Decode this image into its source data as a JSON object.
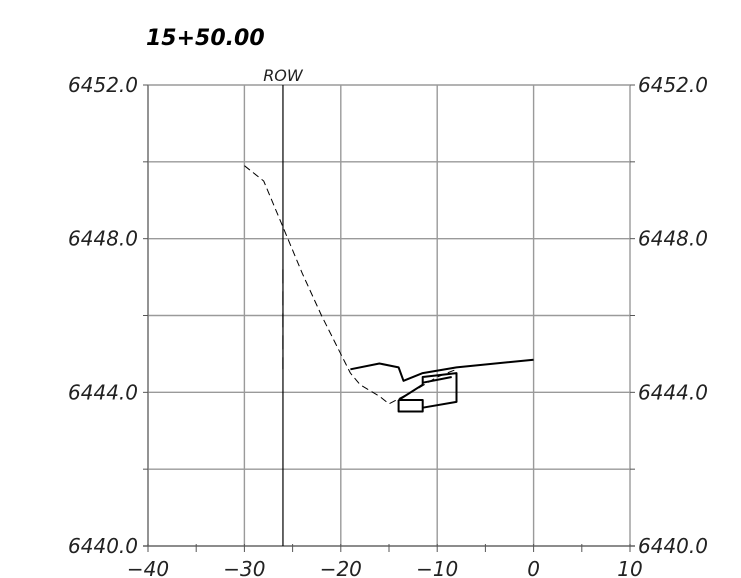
{
  "chart_data": {
    "type": "line",
    "title": "15+50.00",
    "x_ticks": [
      -40,
      -30,
      -20,
      -10,
      0,
      10
    ],
    "x_tick_labels": [
      "−40",
      "−30",
      "−20",
      "−10",
      "0",
      "10"
    ],
    "y_ticks_left": [
      "6452.0",
      "6448.0",
      "6444.0",
      "6440.0"
    ],
    "y_ticks_right": [
      "6452.0",
      "6448.0",
      "6444.0",
      "6440.0"
    ],
    "y_tick_values": [
      6452,
      6448,
      6444,
      6440
    ],
    "xlim": [
      -40,
      10
    ],
    "ylim": [
      6440,
      6452
    ],
    "grid": true,
    "annotations": [
      {
        "text": "ROW",
        "x": -26
      }
    ],
    "series": [
      {
        "style": "dashed",
        "points": [
          [
            -30,
            6449.9
          ],
          [
            -28,
            6449.5
          ],
          [
            -26,
            6448.3
          ],
          [
            -24,
            6447.1
          ],
          [
            -22,
            6446.0
          ],
          [
            -19,
            6444.5
          ],
          [
            -18,
            6444.2
          ],
          [
            -16,
            6443.9
          ],
          [
            -15,
            6443.7
          ],
          [
            -13.5,
            6443.9
          ],
          [
            -12,
            6444.1
          ],
          [
            -10,
            6444.4
          ],
          [
            -8,
            6444.6
          ]
        ]
      },
      {
        "style": "solid",
        "points": [
          [
            -19,
            6444.6
          ],
          [
            -16,
            6444.75
          ],
          [
            -14,
            6444.65
          ],
          [
            -13.5,
            6444.3
          ],
          [
            -11.5,
            6444.5
          ],
          [
            -8,
            6444.65
          ],
          [
            0,
            6444.85
          ]
        ]
      },
      {
        "style": "solid",
        "points": [
          [
            -14,
            6443.8
          ],
          [
            -14,
            6443.5
          ],
          [
            -11.5,
            6443.5
          ],
          [
            -11.5,
            6443.8
          ],
          [
            -14,
            6443.8
          ]
        ]
      },
      {
        "style": "solid",
        "points": [
          [
            -14,
            6443.8
          ],
          [
            -11.5,
            6444.2
          ],
          [
            -11.5,
            6444.4
          ],
          [
            -8,
            6444.5
          ],
          [
            -8,
            6443.75
          ],
          [
            -11.5,
            6443.6
          ]
        ]
      },
      {
        "style": "solid",
        "points": [
          [
            -11.5,
            6444.25
          ],
          [
            -8.5,
            6444.4
          ]
        ]
      }
    ]
  }
}
